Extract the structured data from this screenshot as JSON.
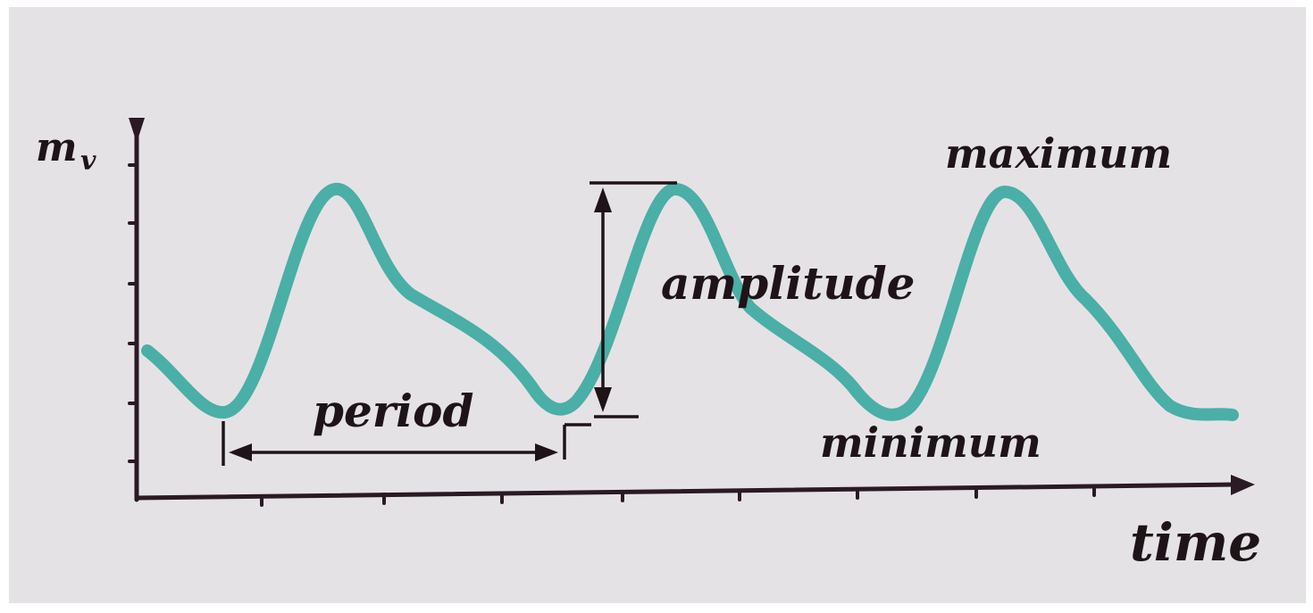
{
  "y_axis_label": {
    "main": "m",
    "subscript": "v"
  },
  "x_axis_label": "time",
  "annotations": {
    "period": "period",
    "amplitude": "amplitude",
    "maximum": "maximum",
    "minimum": "minimum"
  }
}
